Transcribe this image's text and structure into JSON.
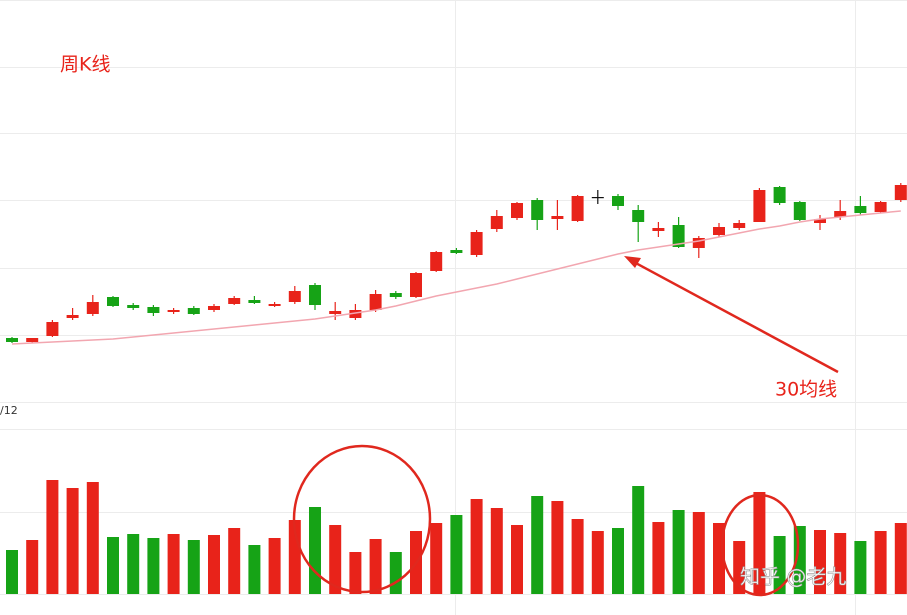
{
  "chart_data": {
    "type": "candlestick",
    "title": "周K线",
    "categories": [
      "/12",
      null,
      null,
      null,
      null,
      null,
      null,
      null,
      null,
      null,
      null,
      null,
      null,
      null,
      null,
      null,
      null,
      null,
      null,
      null,
      null,
      null,
      null,
      null,
      null,
      null,
      null,
      null,
      null,
      null,
      null,
      null,
      null,
      null,
      null,
      null,
      null,
      null,
      null,
      null,
      null,
      null,
      null,
      null,
      null
    ],
    "open": [
      62,
      58,
      64,
      82,
      86,
      103,
      95,
      93,
      88,
      92,
      90,
      96,
      100,
      94,
      98,
      115,
      86,
      82,
      90,
      107,
      103,
      129,
      150,
      145,
      171,
      182,
      200,
      181,
      179,
      203,
      204,
      190,
      169,
      175,
      152,
      165,
      172,
      178,
      213,
      198,
      177,
      183,
      194,
      188,
      200
    ],
    "high": [
      63,
      62,
      80,
      92,
      105,
      104,
      97,
      95,
      92,
      94,
      96,
      104,
      104,
      98,
      114,
      117,
      98,
      96,
      110,
      109,
      128,
      149,
      152,
      170,
      190,
      198,
      202,
      200,
      205,
      210,
      206,
      195,
      178,
      183,
      164,
      177,
      180,
      212,
      214,
      199,
      185,
      200,
      204,
      199,
      217
    ],
    "low": [
      57,
      57,
      63,
      80,
      84,
      93,
      90,
      84,
      86,
      85,
      88,
      95,
      96,
      93,
      96,
      90,
      80,
      80,
      88,
      101,
      102,
      128,
      146,
      143,
      168,
      180,
      170,
      170,
      178,
      196,
      190,
      158,
      163,
      152,
      142,
      163,
      170,
      178,
      195,
      179,
      170,
      180,
      185,
      187,
      198
    ],
    "close": [
      58,
      62,
      78,
      85,
      98,
      94,
      92,
      87,
      90,
      86,
      94,
      102,
      97,
      96,
      109,
      95,
      89,
      90,
      106,
      103,
      127,
      148,
      147,
      168,
      184,
      197,
      180,
      184,
      204,
      203,
      194,
      178,
      172,
      153,
      162,
      173,
      177,
      210,
      197,
      180,
      181,
      189,
      187,
      198,
      215
    ],
    "ma": {
      "name": "30均线",
      "color": "#f2a6b0",
      "values": [
        56,
        57,
        58,
        59,
        60,
        61,
        63,
        65,
        67,
        69,
        71,
        73,
        75,
        77,
        79,
        81,
        84,
        87,
        90,
        94,
        99,
        104,
        108,
        112,
        116,
        121,
        126,
        131,
        136,
        141,
        146,
        150,
        153,
        156,
        159,
        163,
        167,
        171,
        174,
        178,
        181,
        183,
        185,
        187,
        189
      ]
    },
    "volume": [
      44,
      54,
      114,
      106,
      112,
      57,
      60,
      56,
      60,
      54,
      59,
      66,
      49,
      56,
      74,
      87,
      69,
      42,
      55,
      42,
      63,
      71,
      79,
      95,
      86,
      69,
      98,
      93,
      75,
      63,
      66,
      108,
      72,
      84,
      82,
      71,
      53,
      102,
      58,
      68,
      64,
      61,
      53,
      63,
      71
    ],
    "ylim": [
      0,
      400
    ],
    "volume_ylim": [
      0,
      165
    ],
    "up_color": "#e8231a",
    "down_color": "#16a316",
    "doji_color": "#111111",
    "annotations": [
      "30均线",
      "知乎 @老九"
    ]
  }
}
